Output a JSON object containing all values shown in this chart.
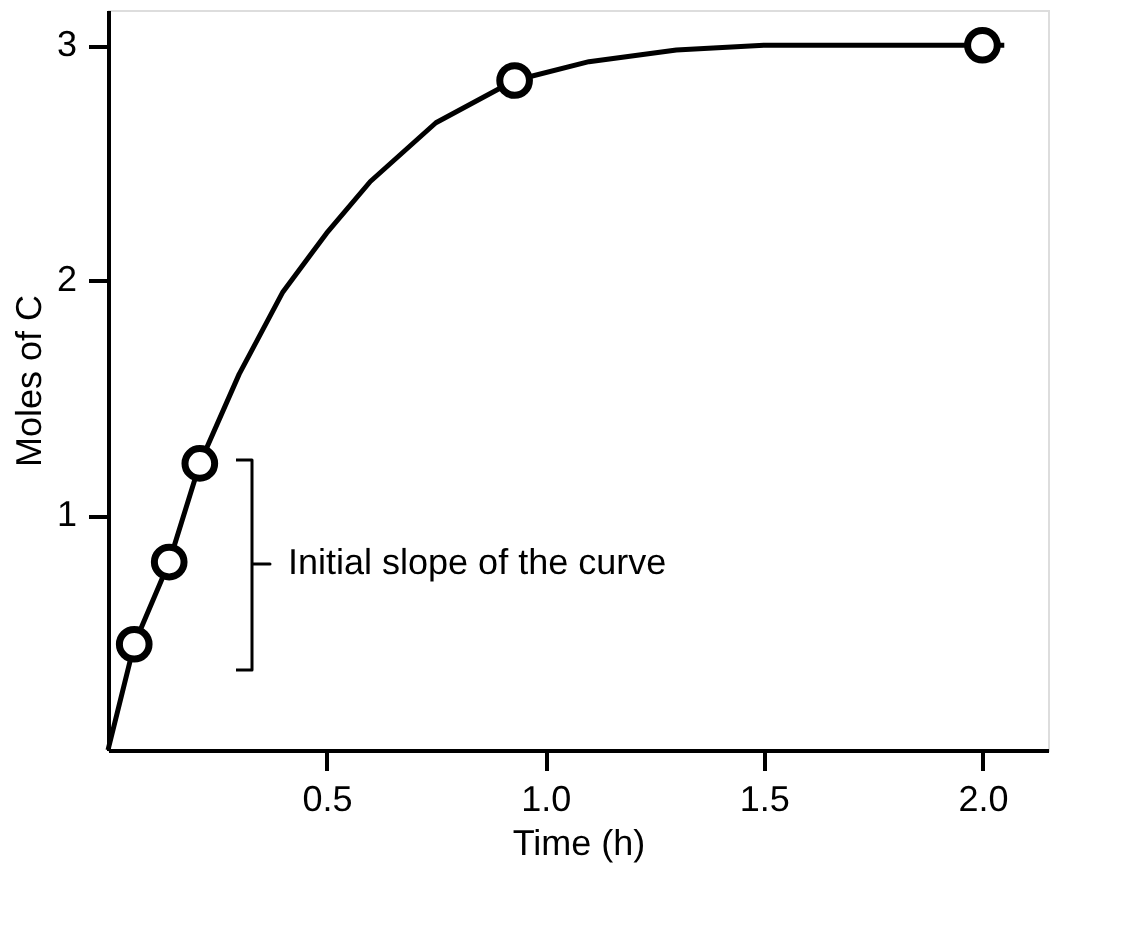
{
  "chart_data": {
    "type": "line",
    "xlabel": "Time (h)",
    "ylabel": "Moles of C",
    "xlim": [
      0,
      2.15
    ],
    "ylim": [
      0,
      3.15
    ],
    "xticks": [
      0.5,
      {
        "value": 1,
        "label": "1.0"
      },
      1.5,
      {
        "value": 2,
        "label": "2.0"
      }
    ],
    "yticks": [
      1,
      2,
      3
    ],
    "grid": false,
    "annotations": [
      "Initial slope of the curve"
    ],
    "series": [
      {
        "color": "#000000",
        "marker": "none",
        "x": [
          0,
          0.06,
          0.14,
          0.21,
          0.3,
          0.4,
          0.5,
          0.6,
          0.75,
          0.93,
          1.1,
          1.3,
          1.5,
          2.0,
          2.05
        ],
        "values": [
          0,
          0.45,
          0.8,
          1.22,
          1.6,
          1.95,
          2.2,
          2.42,
          2.67,
          2.85,
          2.93,
          2.98,
          3.0,
          3.0,
          3.0
        ]
      },
      {
        "type": "scatter",
        "color": "#000000",
        "marker": "circle",
        "x": [
          0.06,
          0.14,
          0.21,
          0.93,
          2.0
        ],
        "values": [
          0.45,
          0.8,
          1.22,
          2.85,
          3.0
        ]
      }
    ]
  }
}
